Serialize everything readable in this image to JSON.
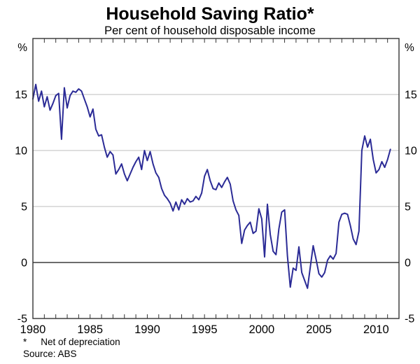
{
  "title": "Household Saving Ratio*",
  "subtitle": "Per cent of household disposable income",
  "footnote": {
    "marker": "*",
    "text": "Net of depreciation"
  },
  "source": "Source: ABS",
  "chart_data": {
    "type": "line",
    "title": "Household Saving Ratio*",
    "subtitle": "Per cent of household disposable income",
    "series_name": "Household saving ratio (net of depreciation, % of household disposable income)",
    "frequency": "quarterly",
    "x_start": 1980.0,
    "x_step": 0.25,
    "values": [
      14.6,
      15.9,
      14.4,
      15.3,
      13.9,
      14.8,
      13.6,
      14.2,
      14.9,
      15.1,
      11.0,
      15.6,
      13.8,
      14.9,
      15.3,
      15.2,
      15.5,
      15.3,
      14.6,
      13.9,
      13.0,
      13.7,
      11.9,
      11.3,
      11.4,
      10.3,
      9.4,
      9.9,
      9.6,
      7.9,
      8.3,
      8.8,
      7.9,
      7.3,
      7.9,
      8.5,
      9.0,
      9.4,
      8.3,
      10.0,
      9.1,
      9.9,
      8.8,
      8.0,
      7.6,
      6.6,
      6.0,
      5.7,
      5.3,
      4.6,
      5.4,
      4.7,
      5.6,
      5.2,
      5.7,
      5.4,
      5.5,
      5.9,
      5.6,
      6.2,
      7.7,
      8.3,
      7.3,
      6.6,
      6.5,
      7.1,
      6.7,
      7.2,
      7.6,
      7.0,
      5.5,
      4.7,
      4.2,
      1.7,
      2.9,
      3.3,
      3.6,
      2.6,
      2.8,
      4.8,
      3.9,
      0.5,
      5.2,
      2.5,
      1.0,
      0.7,
      3.0,
      4.5,
      4.7,
      0.6,
      -2.2,
      -0.5,
      -0.7,
      1.4,
      -0.9,
      -1.6,
      -2.3,
      -0.4,
      1.5,
      0.3,
      -1.0,
      -1.3,
      -0.9,
      0.2,
      0.6,
      0.3,
      0.8,
      3.6,
      4.3,
      4.4,
      4.3,
      3.3,
      2.1,
      1.6,
      2.8,
      10.0,
      11.3,
      10.3,
      11.0,
      9.2,
      8.0,
      8.3,
      9.0,
      8.5,
      9.2,
      10.1
    ],
    "x_axis": {
      "range": [
        1980,
        2012
      ],
      "minor_tick_interval_years": 1,
      "label_years": [
        "1980",
        "1985",
        "1990",
        "1995",
        "2000",
        "2005",
        "2010"
      ]
    },
    "y_axis": {
      "range": [
        -5,
        20
      ],
      "unit_left": "%",
      "unit_right": "%",
      "tick_labels": [
        "-5",
        "0",
        "5",
        "10",
        "15"
      ],
      "gridlines_light": [
        5,
        10,
        15
      ],
      "zero_line": 0,
      "labels_on_both_sides": true
    },
    "grid": true,
    "legend": "none",
    "colors": {
      "line": "#2b2b96",
      "gridline": "#bcbcbc",
      "zero_line": "#3c3c3c",
      "frame": "#333333",
      "text": "#000000"
    }
  }
}
